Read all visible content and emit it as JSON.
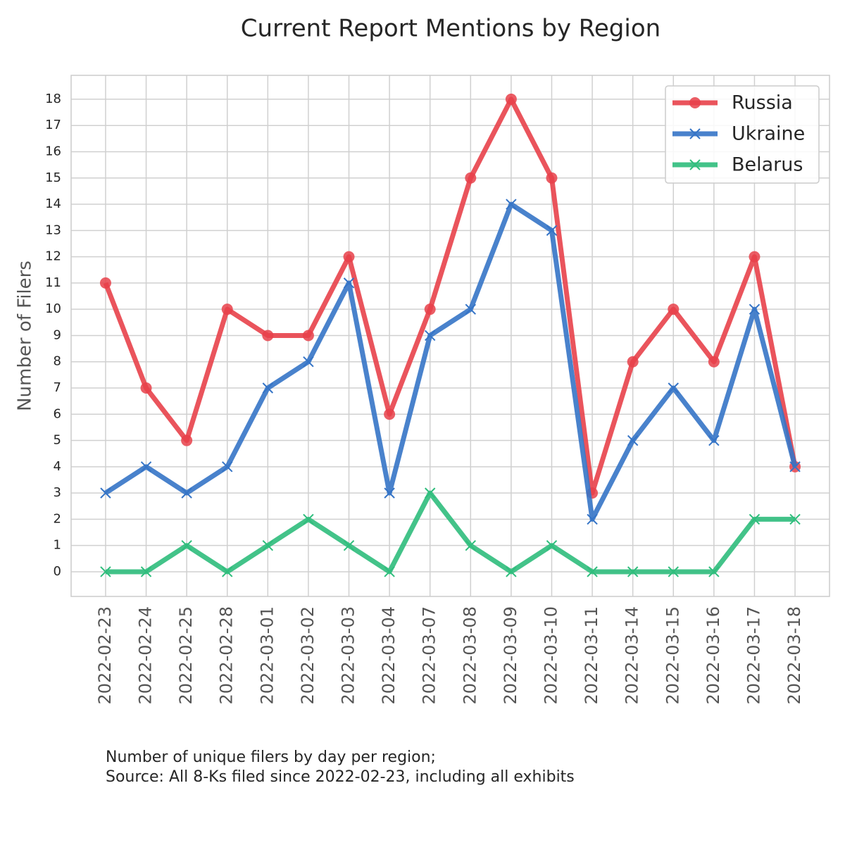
{
  "chart_data": {
    "type": "line",
    "title": "Current Report Mentions by Region",
    "ylabel": "Number of Filers",
    "notes": [
      "Number of unique filers by day per region;",
      "Source: All 8-Ks filed since 2022-02-23, including all exhibits"
    ],
    "categories": [
      "2022-02-23",
      "2022-02-24",
      "2022-02-25",
      "2022-02-28",
      "2022-03-01",
      "2022-03-02",
      "2022-03-03",
      "2022-03-04",
      "2022-03-07",
      "2022-03-08",
      "2022-03-09",
      "2022-03-10",
      "2022-03-11",
      "2022-03-14",
      "2022-03-15",
      "2022-03-16",
      "2022-03-17",
      "2022-03-18"
    ],
    "series": [
      {
        "name": "Russia",
        "color": "#e8414a",
        "marker": "circle",
        "values": [
          11,
          7,
          5,
          10,
          9,
          9,
          12,
          6,
          10,
          15,
          18,
          15,
          3,
          8,
          10,
          8,
          12,
          4
        ]
      },
      {
        "name": "Ukraine",
        "color": "#3574c6",
        "marker": "x",
        "values": [
          3,
          4,
          3,
          4,
          7,
          8,
          11,
          3,
          9,
          10,
          14,
          13,
          2,
          5,
          7,
          5,
          10,
          4
        ]
      },
      {
        "name": "Belarus",
        "color": "#2fbd7c",
        "marker": "x",
        "values": [
          0,
          0,
          1,
          0,
          1,
          2,
          1,
          0,
          3,
          1,
          0,
          1,
          0,
          0,
          0,
          0,
          2,
          2
        ]
      }
    ],
    "ylim": [
      -0.94,
      18.91
    ],
    "yticks": [
      0,
      1,
      2,
      3,
      4,
      5,
      6,
      7,
      8,
      9,
      10,
      11,
      12,
      13,
      14,
      15,
      16,
      17,
      18
    ],
    "grid": true,
    "legend": "upper right"
  }
}
